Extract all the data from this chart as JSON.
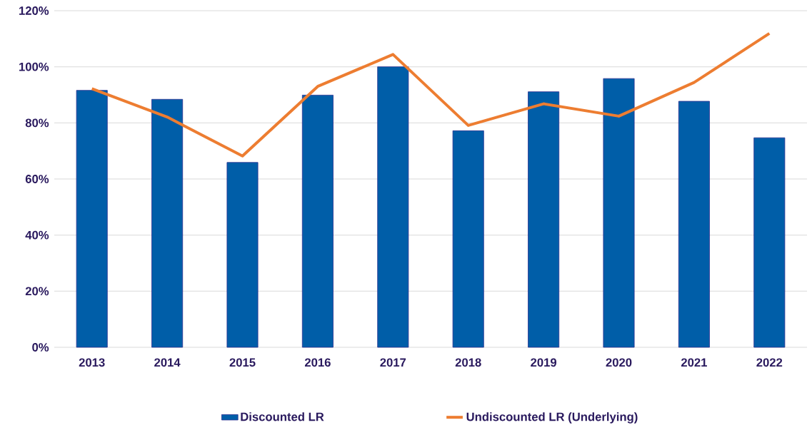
{
  "chart_data": {
    "type": "bar",
    "categories": [
      "2013",
      "2014",
      "2015",
      "2016",
      "2017",
      "2018",
      "2019",
      "2020",
      "2021",
      "2022"
    ],
    "series": [
      {
        "name": "Discounted LR",
        "color": "#005ea8",
        "values": [
          91.6,
          88.4,
          65.9,
          89.9,
          100,
          77.2,
          91.1,
          95.8,
          87.7,
          74.7
        ]
      },
      {
        "name": "Undiscounted LR (Underlying)",
        "type": "line",
        "color": "#ed7d31",
        "values": [
          92.2,
          82.1,
          68.2,
          93,
          104.4,
          79.1,
          86.8,
          82.4,
          94.4,
          111.9
        ]
      }
    ],
    "ylim": [
      0,
      120
    ],
    "yticks": [
      {
        "value": 0,
        "label": "0%"
      },
      {
        "value": 20,
        "label": "20%"
      },
      {
        "value": 40,
        "label": "40%"
      },
      {
        "value": 60,
        "label": "60%"
      },
      {
        "value": 80,
        "label": "80%"
      },
      {
        "value": 100,
        "label": "100%"
      },
      {
        "value": 120,
        "label": "120%"
      }
    ],
    "grid": "y",
    "legend": "bottom"
  }
}
